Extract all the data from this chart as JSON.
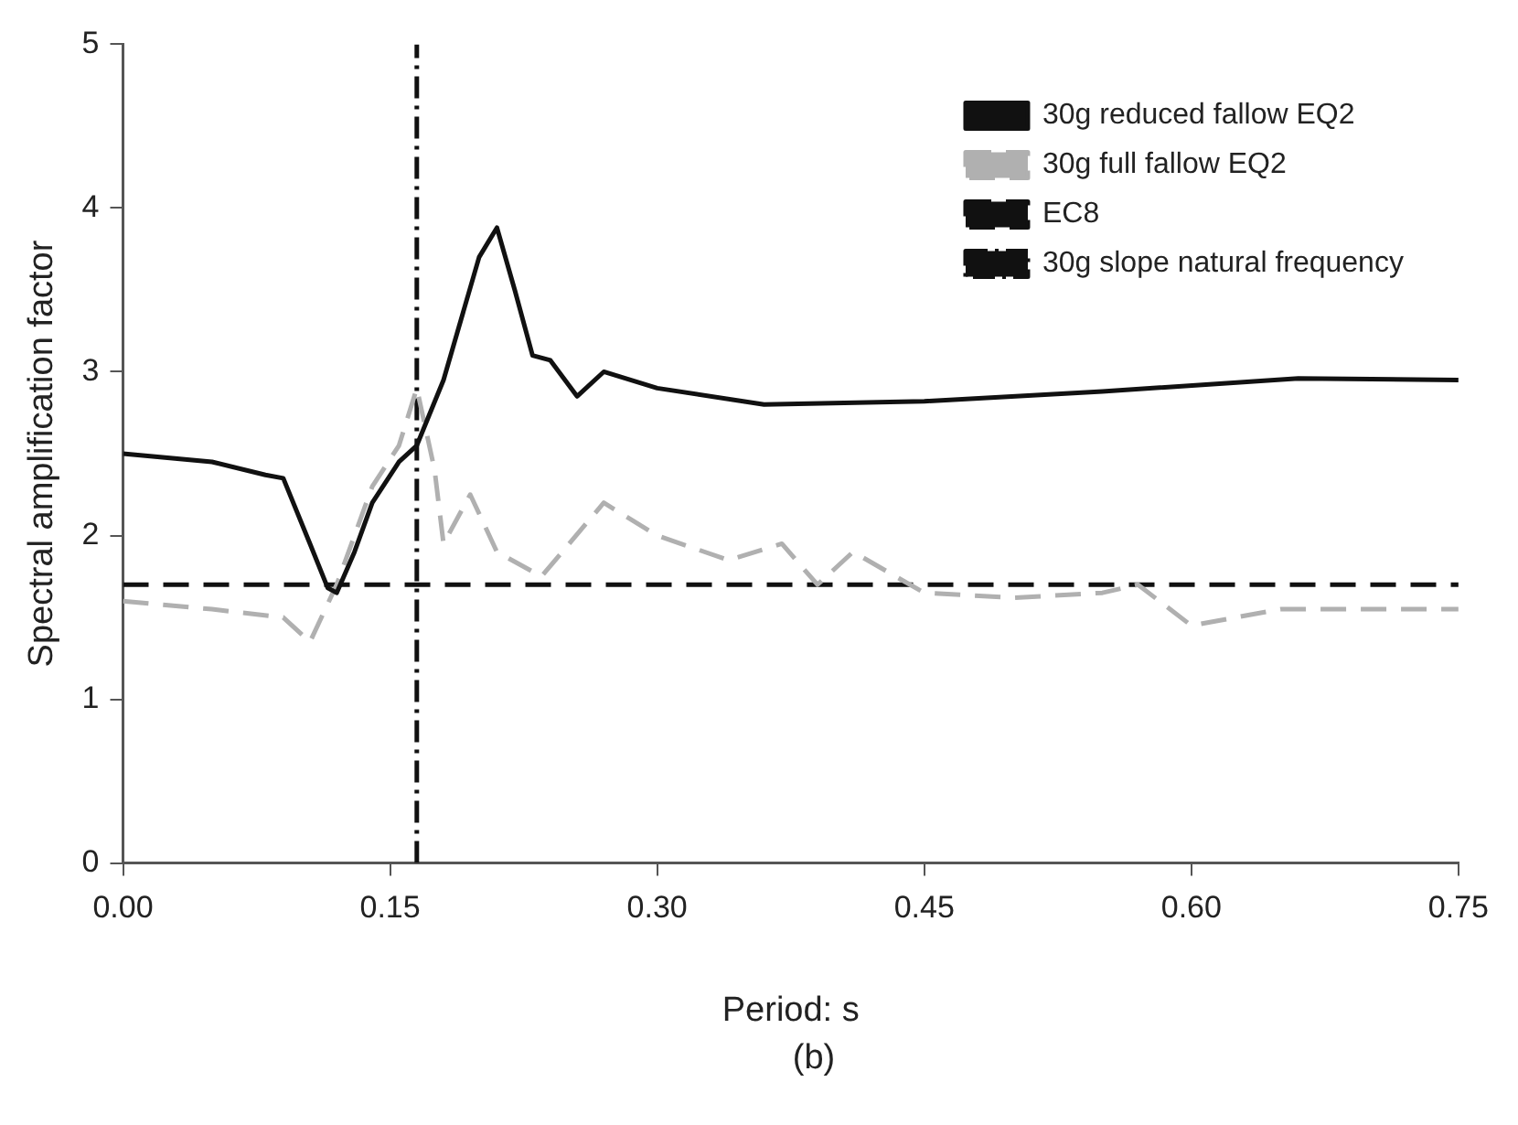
{
  "chart_data": {
    "type": "line",
    "xlabel": "Period: s",
    "ylabel": "Spectral amplification factor",
    "annotations": [
      "(b)"
    ],
    "xlim": [
      0,
      0.75
    ],
    "xticks": [
      {
        "value": 0,
        "label": "0.00"
      },
      {
        "value": 0.15,
        "label": "0.15"
      },
      {
        "value": 0.3,
        "label": "0.30"
      },
      {
        "value": 0.45,
        "label": "0.45"
      },
      {
        "value": 0.6,
        "label": "0.60"
      },
      {
        "value": 0.75,
        "label": "0.75"
      }
    ],
    "ylim": [
      0,
      5
    ],
    "yticks": [
      0,
      1,
      2,
      3,
      4,
      5
    ],
    "grid": false,
    "legend": "top right",
    "marker": "none",
    "series": [
      {
        "name": "30g reduced fallow EQ2",
        "color": "#111111",
        "line_style": "solid",
        "x": [
          0,
          0.05,
          0.08,
          0.09,
          0.105,
          0.115,
          0.12,
          0.13,
          0.14,
          0.155,
          0.165,
          0.18,
          0.2,
          0.21,
          0.22,
          0.23,
          0.24,
          0.255,
          0.27,
          0.3,
          0.36,
          0.45,
          0.55,
          0.66,
          0.75
        ],
        "values": [
          2.5,
          2.45,
          2.37,
          2.35,
          1.95,
          1.68,
          1.65,
          1.9,
          2.2,
          2.45,
          2.55,
          2.95,
          3.7,
          3.88,
          3.5,
          3.1,
          3.07,
          2.85,
          3.0,
          2.9,
          2.8,
          2.82,
          2.88,
          2.96,
          2.95
        ]
      },
      {
        "name": "30g full fallow EQ2",
        "color": "#b0b0b0",
        "line_style": "dashed",
        "x": [
          0,
          0.05,
          0.09,
          0.105,
          0.12,
          0.14,
          0.155,
          0.165,
          0.175,
          0.18,
          0.195,
          0.21,
          0.235,
          0.27,
          0.3,
          0.34,
          0.37,
          0.39,
          0.41,
          0.45,
          0.5,
          0.55,
          0.57,
          0.6,
          0.65,
          0.7,
          0.75
        ],
        "values": [
          1.6,
          1.55,
          1.5,
          1.35,
          1.7,
          2.3,
          2.55,
          2.9,
          2.4,
          1.95,
          2.25,
          1.9,
          1.75,
          2.2,
          2.0,
          1.85,
          1.95,
          1.7,
          1.9,
          1.65,
          1.62,
          1.65,
          1.7,
          1.45,
          1.55,
          1.55,
          1.55
        ]
      },
      {
        "name": "EC8",
        "color": "#111111",
        "line_style": "dashed",
        "x": [
          0,
          0.75
        ],
        "values": [
          1.7,
          1.7
        ]
      },
      {
        "name": "30g slope natural frequency",
        "color": "#111111",
        "line_style": "dotted",
        "x": [
          0.165,
          0.165
        ],
        "values": [
          0,
          5
        ]
      }
    ]
  }
}
